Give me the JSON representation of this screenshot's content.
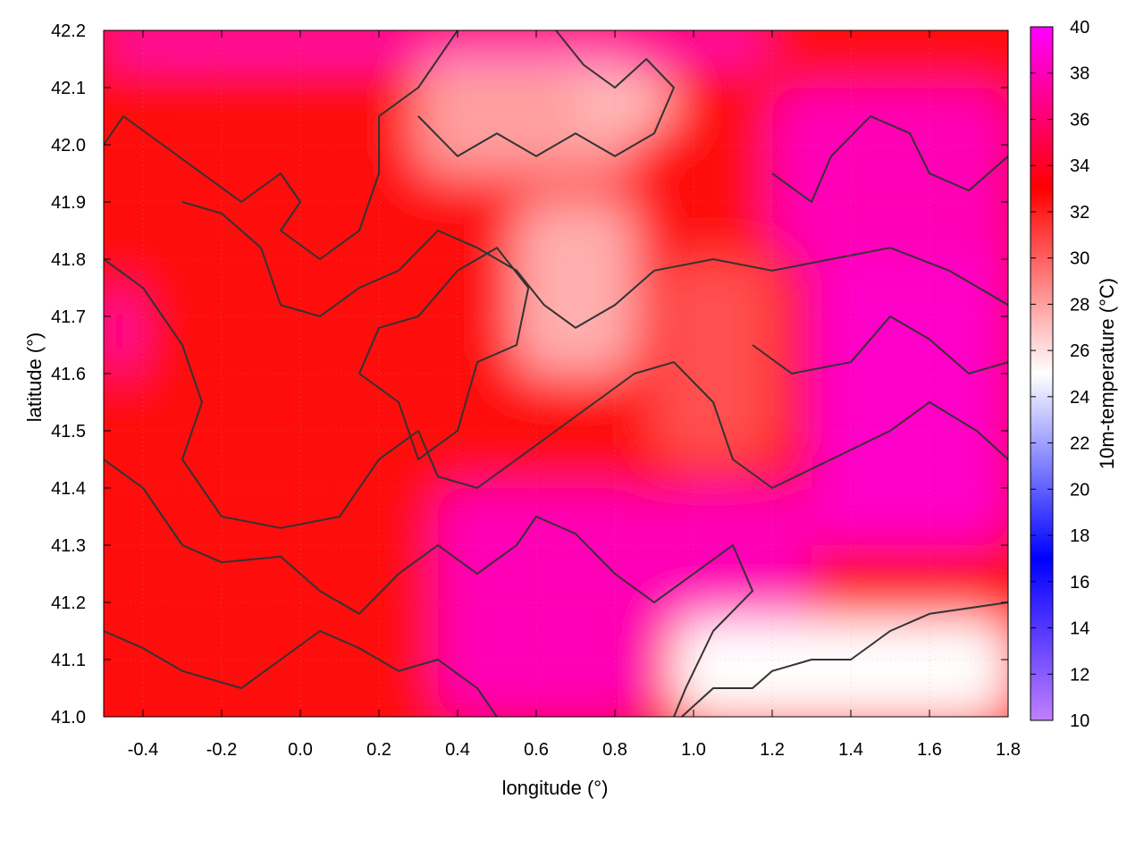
{
  "chart_data": {
    "type": "heatmap",
    "title": "",
    "xlabel": "longitude (°)",
    "ylabel": "latitude (°)",
    "colorbar_label": "10m-temperature (°C)",
    "xlim": [
      -0.5,
      1.8
    ],
    "ylim": [
      41.0,
      42.2
    ],
    "clim": [
      10,
      40
    ],
    "x_ticks": [
      "-0.4",
      "-0.2",
      "0.0",
      "0.2",
      "0.4",
      "0.6",
      "0.8",
      "1.0",
      "1.2",
      "1.4",
      "1.6",
      "1.8"
    ],
    "y_ticks": [
      "41.0",
      "41.1",
      "41.2",
      "41.3",
      "41.4",
      "41.5",
      "41.6",
      "41.7",
      "41.8",
      "41.9",
      "42.0",
      "42.1",
      "42.2"
    ],
    "colorbar_ticks": [
      "10",
      "12",
      "14",
      "16",
      "18",
      "20",
      "22",
      "24",
      "26",
      "28",
      "30",
      "32",
      "34",
      "36",
      "38",
      "40"
    ],
    "colormap": [
      {
        "value": 10,
        "color": "#c080ff"
      },
      {
        "value": 17,
        "color": "#0000ff"
      },
      {
        "value": 25,
        "color": "#ffffff"
      },
      {
        "value": 33,
        "color": "#ff0000"
      },
      {
        "value": 40,
        "color": "#ff00ff"
      }
    ],
    "grid": true,
    "regions": [
      {
        "name": "base-warm",
        "x": [
          -0.5,
          1.8
        ],
        "y": [
          41.0,
          42.2
        ],
        "value": 32.5
      },
      {
        "name": "east-hot",
        "x": [
          1.3,
          1.8
        ],
        "y": [
          41.3,
          42.1
        ],
        "value": 38.5
      },
      {
        "name": "northeast-hot",
        "x": [
          1.2,
          1.8
        ],
        "y": [
          41.8,
          42.1
        ],
        "value": 38.0
      },
      {
        "name": "coast-hot-1",
        "x": [
          0.35,
          0.9
        ],
        "y": [
          41.0,
          41.4
        ],
        "value": 38.0
      },
      {
        "name": "coast-hot-2",
        "x": [
          0.9,
          1.3
        ],
        "y": [
          41.15,
          41.4
        ],
        "value": 38.0
      },
      {
        "name": "north-strip-hot",
        "x": [
          -0.5,
          1.2
        ],
        "y": [
          42.15,
          42.2
        ],
        "value": 38.5
      },
      {
        "name": "pale-north",
        "x": [
          0.3,
          0.85
        ],
        "y": [
          41.95,
          42.15
        ],
        "value": 28.0
      },
      {
        "name": "pale-northeast",
        "x": [
          0.7,
          0.95
        ],
        "y": [
          42.03,
          42.12
        ],
        "value": 27.0
      },
      {
        "name": "cool-center",
        "x": [
          0.6,
          0.75
        ],
        "y": [
          41.65,
          41.75
        ],
        "value": 24.0
      },
      {
        "name": "pale-center",
        "x": [
          0.55,
          0.85
        ],
        "y": [
          41.6,
          41.9
        ],
        "value": 27.5
      },
      {
        "name": "mid-east",
        "x": [
          0.9,
          1.2
        ],
        "y": [
          41.45,
          41.8
        ],
        "value": 30.5
      },
      {
        "name": "sea",
        "x": [
          0.95,
          1.8
        ],
        "y": [
          41.0,
          41.17
        ],
        "value": 25.0
      },
      {
        "name": "west-edge",
        "x": [
          -0.5,
          -0.42
        ],
        "y": [
          41.6,
          41.75
        ],
        "value": 38.0
      }
    ],
    "contours": [
      [
        [
          -0.5,
          42.0
        ],
        [
          -0.45,
          42.05
        ],
        [
          -0.35,
          42.0
        ],
        [
          -0.25,
          41.95
        ],
        [
          -0.15,
          41.9
        ],
        [
          -0.05,
          41.95
        ],
        [
          0.0,
          41.9
        ],
        [
          -0.05,
          41.85
        ],
        [
          0.05,
          41.8
        ],
        [
          0.15,
          41.85
        ],
        [
          0.2,
          41.95
        ],
        [
          0.2,
          42.05
        ],
        [
          0.3,
          42.1
        ],
        [
          0.4,
          42.2
        ]
      ],
      [
        [
          -0.3,
          41.9
        ],
        [
          -0.2,
          41.88
        ],
        [
          -0.1,
          41.82
        ],
        [
          -0.05,
          41.72
        ],
        [
          0.05,
          41.7
        ],
        [
          0.15,
          41.75
        ],
        [
          0.25,
          41.78
        ],
        [
          0.35,
          41.85
        ],
        [
          0.45,
          41.82
        ],
        [
          0.55,
          41.78
        ],
        [
          0.62,
          41.72
        ],
        [
          0.7,
          41.68
        ],
        [
          0.8,
          41.72
        ],
        [
          0.9,
          41.78
        ],
        [
          1.05,
          41.8
        ],
        [
          1.2,
          41.78
        ],
        [
          1.35,
          41.8
        ],
        [
          1.5,
          41.82
        ],
        [
          1.65,
          41.78
        ],
        [
          1.8,
          41.72
        ]
      ],
      [
        [
          -0.5,
          41.8
        ],
        [
          -0.4,
          41.75
        ],
        [
          -0.3,
          41.65
        ],
        [
          -0.25,
          41.55
        ],
        [
          -0.3,
          41.45
        ],
        [
          -0.2,
          41.35
        ],
        [
          -0.05,
          41.33
        ],
        [
          0.1,
          41.35
        ],
        [
          0.2,
          41.45
        ],
        [
          0.3,
          41.5
        ],
        [
          0.35,
          41.42
        ],
        [
          0.45,
          41.4
        ],
        [
          0.55,
          41.45
        ],
        [
          0.65,
          41.5
        ],
        [
          0.75,
          41.55
        ],
        [
          0.85,
          41.6
        ],
        [
          0.95,
          41.62
        ],
        [
          1.05,
          41.55
        ],
        [
          1.1,
          41.45
        ],
        [
          1.2,
          41.4
        ],
        [
          1.35,
          41.45
        ],
        [
          1.5,
          41.5
        ],
        [
          1.6,
          41.55
        ],
        [
          1.72,
          41.5
        ],
        [
          1.8,
          41.45
        ]
      ],
      [
        [
          -0.5,
          41.45
        ],
        [
          -0.4,
          41.4
        ],
        [
          -0.3,
          41.3
        ],
        [
          -0.2,
          41.27
        ],
        [
          -0.05,
          41.28
        ],
        [
          0.05,
          41.22
        ],
        [
          0.15,
          41.18
        ],
        [
          0.25,
          41.25
        ],
        [
          0.35,
          41.3
        ],
        [
          0.45,
          41.25
        ],
        [
          0.55,
          41.3
        ],
        [
          0.6,
          41.35
        ],
        [
          0.7,
          41.32
        ],
        [
          0.8,
          41.25
        ],
        [
          0.9,
          41.2
        ],
        [
          1.0,
          41.25
        ],
        [
          1.1,
          41.3
        ],
        [
          1.15,
          41.22
        ],
        [
          1.05,
          41.15
        ],
        [
          0.98,
          41.05
        ],
        [
          0.95,
          41.0
        ]
      ],
      [
        [
          -0.5,
          41.15
        ],
        [
          -0.4,
          41.12
        ],
        [
          -0.3,
          41.08
        ],
        [
          -0.15,
          41.05
        ],
        [
          -0.05,
          41.1
        ],
        [
          0.05,
          41.15
        ],
        [
          0.15,
          41.12
        ],
        [
          0.25,
          41.08
        ],
        [
          0.35,
          41.1
        ],
        [
          0.45,
          41.05
        ],
        [
          0.5,
          41.0
        ]
      ],
      [
        [
          0.3,
          42.05
        ],
        [
          0.4,
          41.98
        ],
        [
          0.5,
          42.02
        ],
        [
          0.6,
          41.98
        ],
        [
          0.7,
          42.02
        ],
        [
          0.8,
          41.98
        ],
        [
          0.9,
          42.02
        ],
        [
          0.95,
          42.1
        ],
        [
          0.88,
          42.15
        ],
        [
          0.8,
          42.1
        ],
        [
          0.72,
          42.14
        ],
        [
          0.65,
          42.2
        ]
      ],
      [
        [
          0.15,
          41.6
        ],
        [
          0.25,
          41.55
        ],
        [
          0.3,
          41.45
        ],
        [
          0.4,
          41.5
        ],
        [
          0.45,
          41.62
        ],
        [
          0.55,
          41.65
        ],
        [
          0.58,
          41.75
        ],
        [
          0.5,
          41.82
        ],
        [
          0.4,
          41.78
        ],
        [
          0.3,
          41.7
        ],
        [
          0.2,
          41.68
        ],
        [
          0.15,
          41.6
        ]
      ],
      [
        [
          1.15,
          41.65
        ],
        [
          1.25,
          41.6
        ],
        [
          1.4,
          41.62
        ],
        [
          1.5,
          41.7
        ],
        [
          1.6,
          41.66
        ],
        [
          1.7,
          41.6
        ],
        [
          1.8,
          41.62
        ]
      ],
      [
        [
          1.2,
          41.95
        ],
        [
          1.3,
          41.9
        ],
        [
          1.35,
          41.98
        ],
        [
          1.45,
          42.05
        ],
        [
          1.55,
          42.02
        ],
        [
          1.6,
          41.95
        ],
        [
          1.7,
          41.92
        ],
        [
          1.8,
          41.98
        ]
      ],
      [
        [
          0.97,
          41.0
        ],
        [
          1.05,
          41.05
        ],
        [
          1.15,
          41.05
        ],
        [
          1.2,
          41.08
        ],
        [
          1.3,
          41.1
        ],
        [
          1.4,
          41.1
        ],
        [
          1.5,
          41.15
        ],
        [
          1.6,
          41.18
        ],
        [
          1.7,
          41.19
        ],
        [
          1.8,
          41.2
        ]
      ]
    ]
  }
}
